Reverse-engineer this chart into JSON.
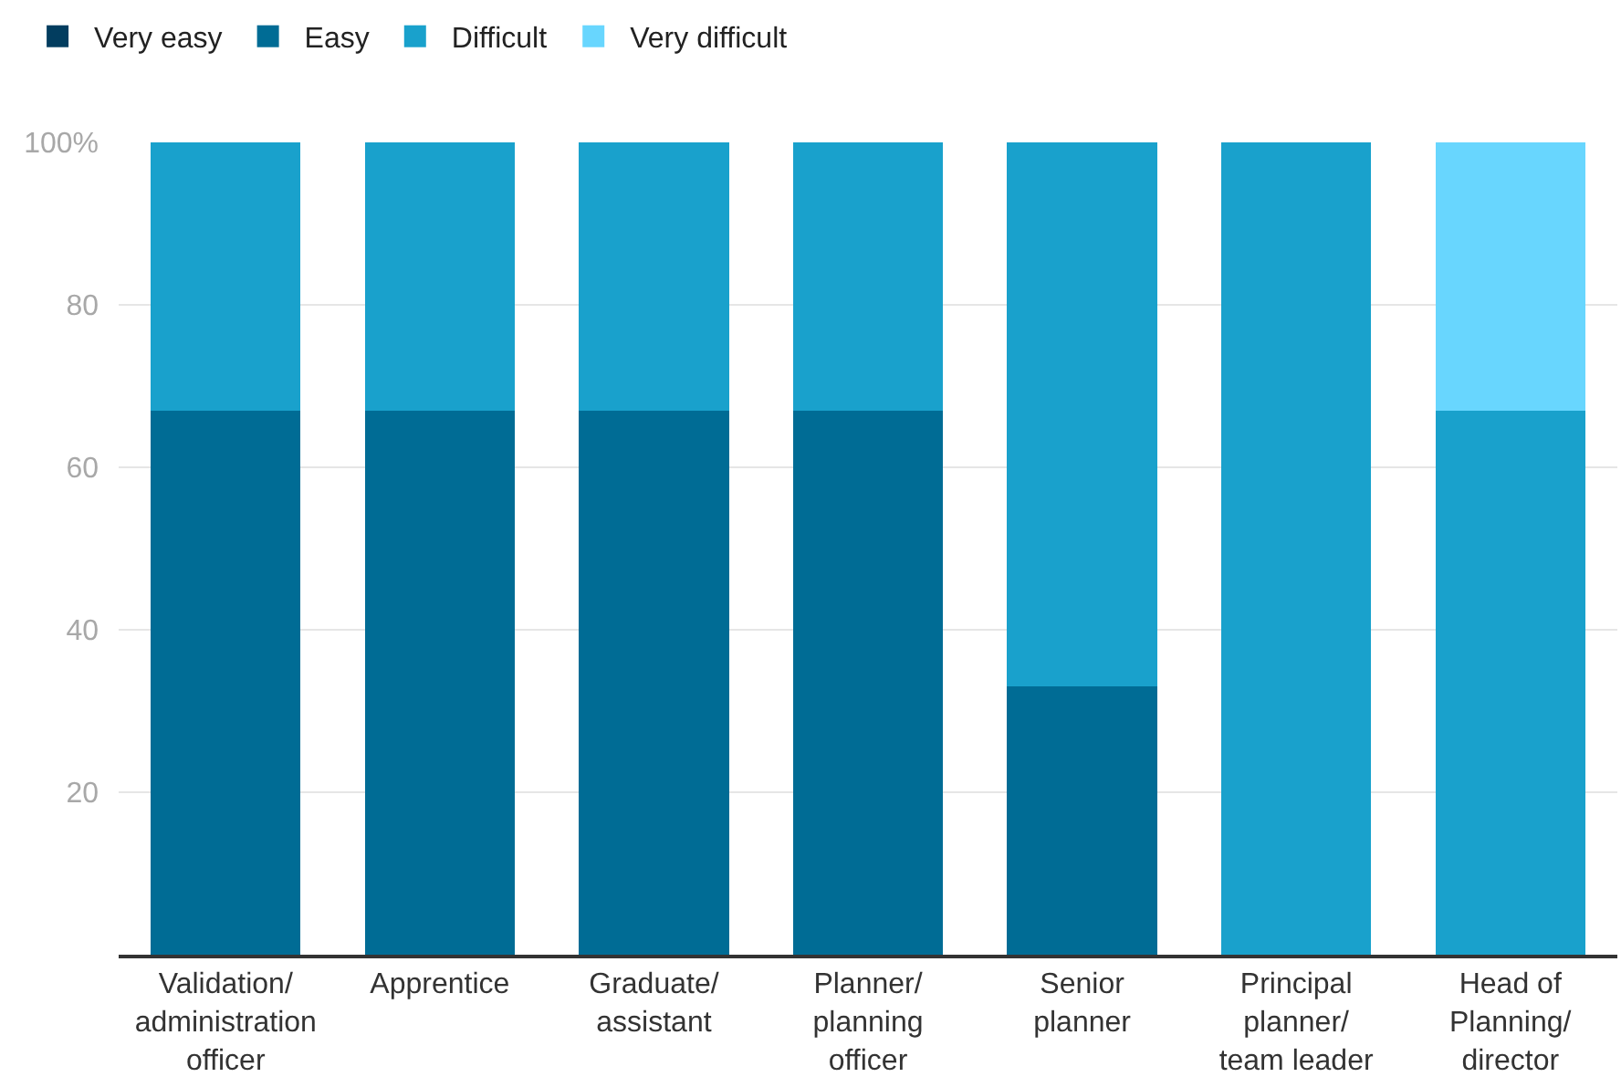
{
  "chart_data": {
    "type": "bar",
    "stacked": true,
    "categories": [
      "Validation/ administration officer",
      "Apprentice",
      "Graduate/ assistant",
      "Planner/ planning officer",
      "Senior planner",
      "Principal planner/ team leader",
      "Head of Planning/ director"
    ],
    "series": [
      {
        "name": "Very easy",
        "color": "#023d5f",
        "values": [
          0,
          0,
          0,
          0,
          0,
          0,
          0
        ]
      },
      {
        "name": "Easy",
        "color": "#006c95",
        "values": [
          67,
          67,
          67,
          67,
          33,
          0,
          0
        ]
      },
      {
        "name": "Difficult",
        "color": "#19a1cc",
        "values": [
          33,
          33,
          33,
          33,
          67,
          100,
          67
        ]
      },
      {
        "name": "Very difficult",
        "color": "#68d6fe",
        "values": [
          0,
          0,
          0,
          0,
          0,
          0,
          33
        ]
      }
    ],
    "ylim": [
      0,
      100
    ],
    "yticks": [
      {
        "value": 20,
        "label": "20"
      },
      {
        "value": 40,
        "label": "40"
      },
      {
        "value": 60,
        "label": "60"
      },
      {
        "value": 80,
        "label": "80"
      },
      {
        "value": 100,
        "label": "100%"
      }
    ],
    "grid": "y",
    "legend": "top left"
  }
}
